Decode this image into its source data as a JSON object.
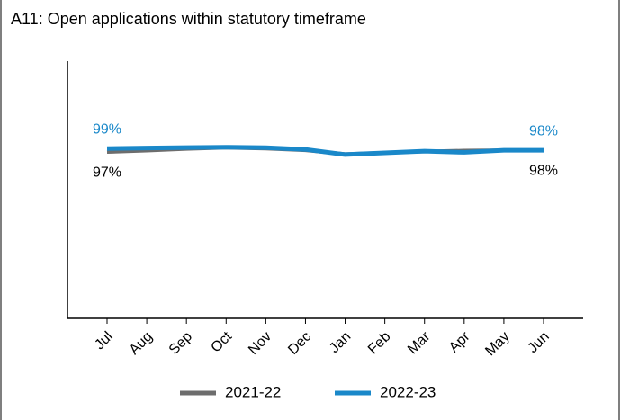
{
  "chart_data": {
    "type": "line",
    "title": "A11: Open applications within statutory timeframe",
    "categories": [
      "Jul",
      "Aug",
      "Sep",
      "Oct",
      "Nov",
      "Dec",
      "Jan",
      "Feb",
      "Mar",
      "Apr",
      "May",
      "Jun"
    ],
    "series": [
      {
        "name": "2021-22",
        "color": "#6d6d6d",
        "values": [
          97,
          97.8,
          98.8,
          99.5,
          99,
          98,
          95.8,
          96.6,
          97.3,
          97.8,
          98,
          98
        ],
        "value_labels": [
          "97%",
          null,
          null,
          null,
          null,
          null,
          null,
          null,
          null,
          null,
          null,
          "98%"
        ]
      },
      {
        "name": "2022-23",
        "color": "#1a88c9",
        "values": [
          99,
          99.3,
          99.6,
          99.8,
          99.5,
          98.5,
          95.5,
          96.5,
          97.5,
          96.8,
          98,
          98
        ],
        "value_labels": [
          "99%",
          null,
          null,
          null,
          null,
          null,
          null,
          null,
          null,
          null,
          null,
          "98%"
        ]
      }
    ],
    "ylim": [
      0,
      150
    ],
    "legend": "bottom"
  }
}
